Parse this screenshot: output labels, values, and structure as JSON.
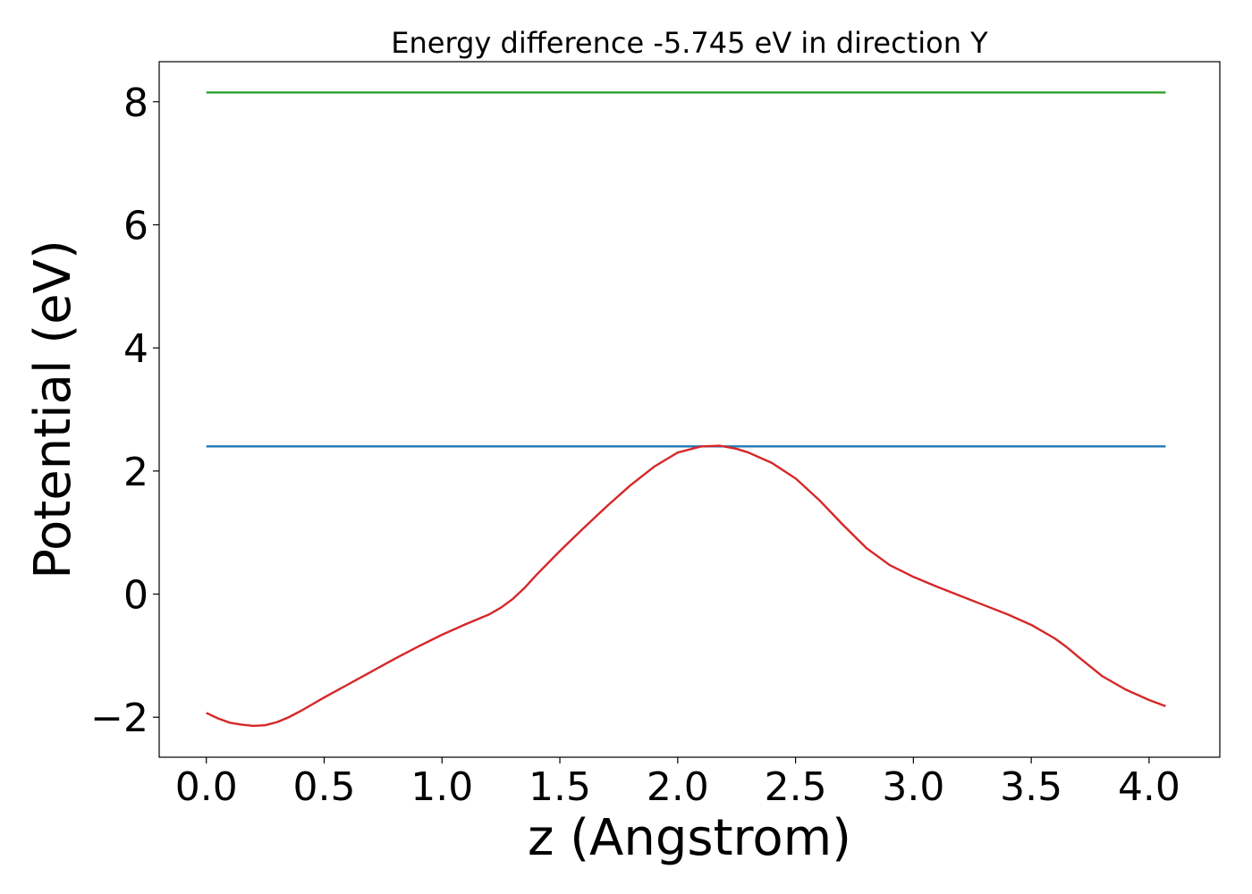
{
  "chart_data": {
    "type": "line",
    "title": "Energy difference -5.745 eV in direction Y",
    "xlabel": "z (Angstrom)",
    "ylabel": "Potential (eV)",
    "xlim": [
      -0.2,
      4.3
    ],
    "ylim": [
      -2.65,
      8.65
    ],
    "xticks": [
      0.0,
      0.5,
      1.0,
      1.5,
      2.0,
      2.5,
      3.0,
      3.5,
      4.0
    ],
    "xtick_labels": [
      "0.0",
      "0.5",
      "1.0",
      "1.5",
      "2.0",
      "2.5",
      "3.0",
      "3.5",
      "4.0"
    ],
    "yticks": [
      -2,
      0,
      2,
      4,
      6,
      8
    ],
    "ytick_labels": [
      "−2",
      "0",
      "2",
      "4",
      "6",
      "8"
    ],
    "grid": false,
    "legend": "none",
    "series": [
      {
        "color": "#2ca02c",
        "x": [
          0.0,
          4.07
        ],
        "y": [
          8.15,
          8.15
        ]
      },
      {
        "color": "#1f77b4",
        "x": [
          0.0,
          4.07
        ],
        "y": [
          2.4,
          2.4
        ]
      },
      {
        "color": "#d62728",
        "x": [
          0.0,
          0.05,
          0.1,
          0.15,
          0.2,
          0.25,
          0.3,
          0.35,
          0.4,
          0.5,
          0.6,
          0.7,
          0.8,
          0.9,
          1.0,
          1.1,
          1.2,
          1.25,
          1.3,
          1.35,
          1.4,
          1.5,
          1.6,
          1.7,
          1.8,
          1.9,
          2.0,
          2.1,
          2.18,
          2.25,
          2.3,
          2.4,
          2.5,
          2.6,
          2.7,
          2.8,
          2.9,
          3.0,
          3.1,
          3.2,
          3.3,
          3.4,
          3.5,
          3.6,
          3.65,
          3.7,
          3.8,
          3.9,
          4.0,
          4.07
        ],
        "y": [
          -1.93,
          -2.02,
          -2.09,
          -2.12,
          -2.14,
          -2.13,
          -2.08,
          -2.0,
          -1.9,
          -1.68,
          -1.47,
          -1.26,
          -1.05,
          -0.85,
          -0.66,
          -0.49,
          -0.33,
          -0.22,
          -0.08,
          0.1,
          0.31,
          0.7,
          1.07,
          1.43,
          1.77,
          2.07,
          2.3,
          2.4,
          2.41,
          2.36,
          2.3,
          2.13,
          1.88,
          1.53,
          1.13,
          0.75,
          0.47,
          0.28,
          0.12,
          -0.03,
          -0.18,
          -0.33,
          -0.5,
          -0.72,
          -0.86,
          -1.02,
          -1.33,
          -1.55,
          -1.72,
          -1.82
        ]
      }
    ]
  }
}
